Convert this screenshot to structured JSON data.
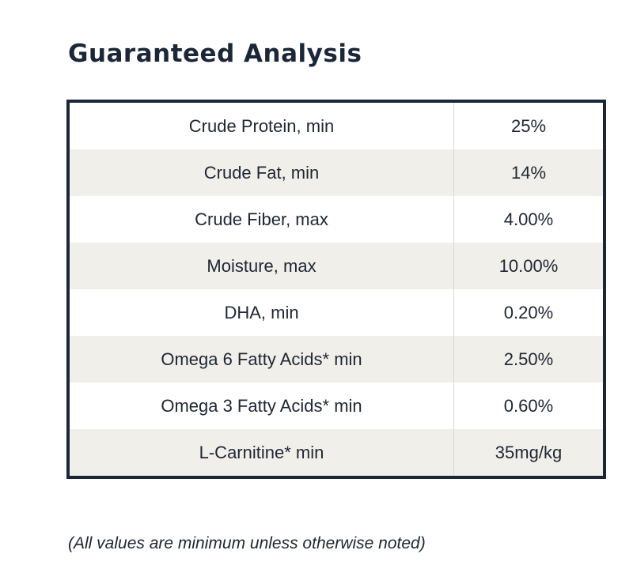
{
  "title": "Guaranteed Analysis",
  "rows": [
    {
      "nutrient": "Crude Protein, min",
      "value": "25%"
    },
    {
      "nutrient": "Crude Fat, min",
      "value": "14%"
    },
    {
      "nutrient": "Crude Fiber, max",
      "value": "4.00%"
    },
    {
      "nutrient": "Moisture, max",
      "value": "10.00%"
    },
    {
      "nutrient": "DHA, min",
      "value": "0.20%"
    },
    {
      "nutrient": "Omega 6 Fatty Acids* min",
      "value": "2.50%"
    },
    {
      "nutrient": "Omega 3 Fatty Acids* min",
      "value": "0.60%"
    },
    {
      "nutrient": "L-Carnitine* min",
      "value": "35mg/kg"
    }
  ],
  "footnote": "(All values are minimum unless otherwise noted)",
  "colors": {
    "border": "#1b2638",
    "alt_row": "#f0efea",
    "text": "#1f2633"
  }
}
